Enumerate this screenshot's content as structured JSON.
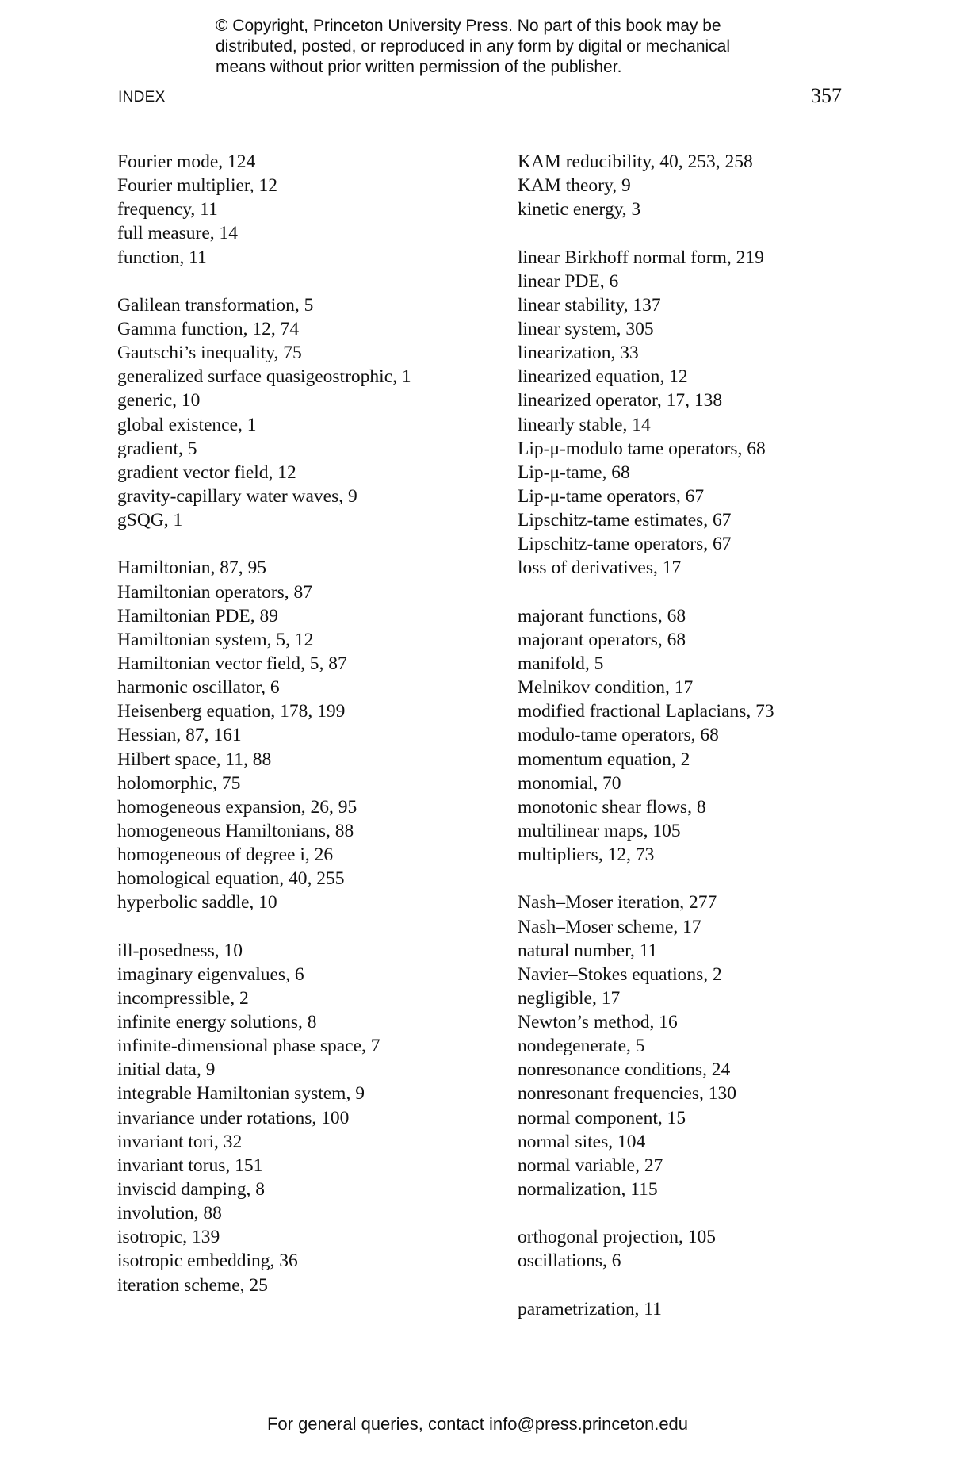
{
  "copyright_notice": [
    "© Copyright, Princeton University Press. No part of this book may be",
    "distributed, posted, or reproduced in any form by digital or mechanical",
    "means without prior written permission of the publisher."
  ],
  "running_head": "INDEX",
  "page_number": "357",
  "left_column": [
    "Fourier mode, 124",
    "Fourier multiplier, 12",
    "frequency, 11",
    "full measure, 14",
    "function, 11",
    null,
    "Galilean transformation, 5",
    "Gamma function, 12, 74",
    "Gautschi’s inequality, 75",
    "generalized surface quasigeostrophic, 1",
    "generic, 10",
    "global existence, 1",
    "gradient, 5",
    "gradient vector field, 12",
    "gravity-capillary water waves, 9",
    "gSQG, 1",
    null,
    "Hamiltonian, 87, 95",
    "Hamiltonian operators, 87",
    "Hamiltonian PDE, 89",
    "Hamiltonian system, 5, 12",
    "Hamiltonian vector field, 5, 87",
    "harmonic oscillator, 6",
    "Heisenberg equation, 178, 199",
    "Hessian, 87, 161",
    "Hilbert space, 11, 88",
    "holomorphic, 75",
    "homogeneous expansion, 26, 95",
    "homogeneous Hamiltonians, 88",
    "homogeneous of degree i, 26",
    "homological equation, 40, 255",
    "hyperbolic saddle, 10",
    null,
    "ill-posedness, 10",
    "imaginary eigenvalues, 6",
    "incompressible, 2",
    "infinite energy solutions, 8",
    "infinite-dimensional phase space, 7",
    "initial data, 9",
    "integrable Hamiltonian system, 9",
    "invariance under rotations, 100",
    "invariant tori, 32",
    "invariant torus, 151",
    "inviscid damping, 8",
    "involution, 88",
    "isotropic, 139",
    "isotropic embedding, 36",
    "iteration scheme, 25"
  ],
  "right_column": [
    "KAM reducibility, 40, 253, 258",
    "KAM theory, 9",
    "kinetic energy, 3",
    null,
    "linear Birkhoff normal form, 219",
    "linear PDE, 6",
    "linear stability, 137",
    "linear system, 305",
    "linearization, 33",
    "linearized equation, 12",
    "linearized operator, 17, 138",
    "linearly stable, 14",
    "Lip-μ-modulo tame operators, 68",
    "Lip-μ-tame, 68",
    "Lip-μ-tame operators, 67",
    "Lipschitz-tame estimates, 67",
    "Lipschitz-tame operators, 67",
    "loss of derivatives, 17",
    null,
    "majorant functions, 68",
    "majorant operators, 68",
    "manifold, 5",
    "Melnikov condition, 17",
    "modified fractional Laplacians, 73",
    "modulo-tame operators, 68",
    "momentum equation, 2",
    "monomial, 70",
    "monotonic shear flows, 8",
    "multilinear maps, 105",
    "multipliers, 12, 73",
    null,
    "Nash–Moser iteration, 277",
    "Nash–Moser scheme, 17",
    "natural number, 11",
    "Navier–Stokes equations, 2",
    "negligible, 17",
    "Newton’s method, 16",
    "nondegenerate, 5",
    "nonresonance conditions, 24",
    "nonresonant frequencies, 130",
    "normal component, 15",
    "normal sites, 104",
    "normal variable, 27",
    "normalization, 115",
    null,
    "orthogonal projection, 105",
    "oscillations, 6",
    null,
    "parametrization, 11"
  ],
  "footer": "For general queries, contact info@press.princeton.edu"
}
